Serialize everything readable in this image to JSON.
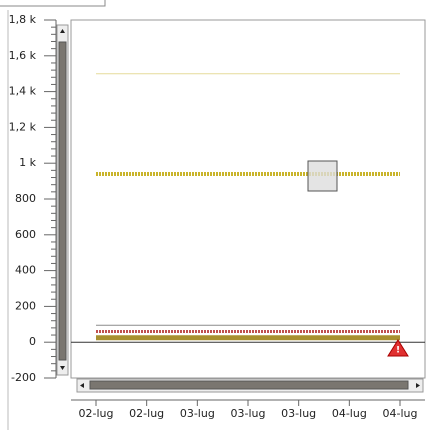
{
  "chart_data": {
    "type": "line",
    "categories": [
      "02-lug",
      "02-lug",
      "03-lug",
      "03-lug",
      "03-lug",
      "04-lug",
      "04-lug"
    ],
    "series": [
      {
        "color": "#e6dc9a",
        "values": [
          1500,
          1500,
          1500,
          1500,
          1500,
          1500,
          1500
        ]
      },
      {
        "color": "#c9b42a",
        "values": [
          940,
          940,
          940,
          940,
          940,
          940,
          940
        ]
      },
      {
        "color": "#8c8c8c",
        "values": [
          95,
          95,
          95,
          95,
          95,
          95,
          95
        ]
      },
      {
        "color": "#c05050",
        "values": [
          60,
          60,
          60,
          60,
          60,
          60,
          60
        ]
      },
      {
        "color": "#a89030",
        "values": [
          25,
          25,
          25,
          25,
          25,
          25,
          25
        ]
      }
    ],
    "ylim": [
      -200,
      1800
    ],
    "yticks": [
      -200,
      0,
      200,
      400,
      600,
      800,
      {
        "value": 1000,
        "label": "1 k"
      },
      {
        "value": 1200,
        "label": "1,2 k"
      },
      {
        "value": 1400,
        "label": "1,4 k"
      },
      {
        "value": 1600,
        "label": "1,6 k"
      },
      {
        "value": 1800,
        "label": "1,8 k"
      }
    ]
  }
}
